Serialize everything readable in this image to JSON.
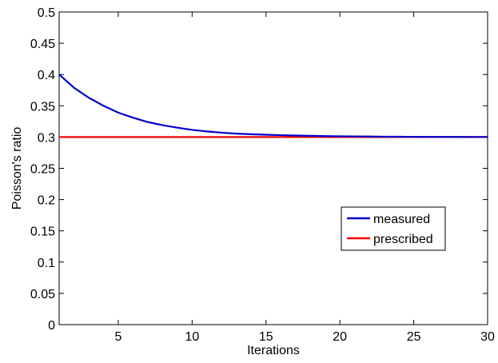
{
  "chart_data": {
    "type": "line",
    "title": "",
    "xlabel": "Iterations",
    "ylabel": "Poisson's ratio",
    "xlim": [
      1,
      30
    ],
    "ylim": [
      0,
      0.5
    ],
    "xticks": [
      5,
      10,
      15,
      20,
      25,
      30
    ],
    "yticks": [
      0,
      0.05,
      0.1,
      0.15,
      0.2,
      0.25,
      0.3,
      0.35,
      0.4,
      0.45,
      0.5
    ],
    "xtick_labels": [
      "5",
      "10",
      "15",
      "20",
      "25",
      "30"
    ],
    "ytick_labels": [
      "0",
      "0.05",
      "0.1",
      "0.15",
      "0.2",
      "0.25",
      "0.3",
      "0.35",
      "0.4",
      "0.45",
      "0.5"
    ],
    "grid": false,
    "legend_position": "lower-right",
    "series": [
      {
        "name": "measured",
        "color": "#0000cc",
        "x": [
          1,
          2,
          3,
          4,
          5,
          6,
          7,
          8,
          9,
          10,
          11,
          12,
          13,
          14,
          15,
          16,
          17,
          18,
          19,
          20,
          21,
          22,
          23,
          24,
          25,
          26,
          27,
          28,
          29,
          30
        ],
        "y": [
          0.4,
          0.379,
          0.363,
          0.35,
          0.339,
          0.331,
          0.324,
          0.319,
          0.315,
          0.3115,
          0.309,
          0.307,
          0.3055,
          0.3045,
          0.3037,
          0.303,
          0.3024,
          0.3019,
          0.3015,
          0.3012,
          0.301,
          0.3008,
          0.3006,
          0.3005,
          0.3004,
          0.3003,
          0.3002,
          0.3002,
          0.3001,
          0.3001
        ]
      },
      {
        "name": "prescribed",
        "color": "#ff0000",
        "x": [
          1,
          30
        ],
        "y": [
          0.3,
          0.3
        ]
      }
    ]
  }
}
